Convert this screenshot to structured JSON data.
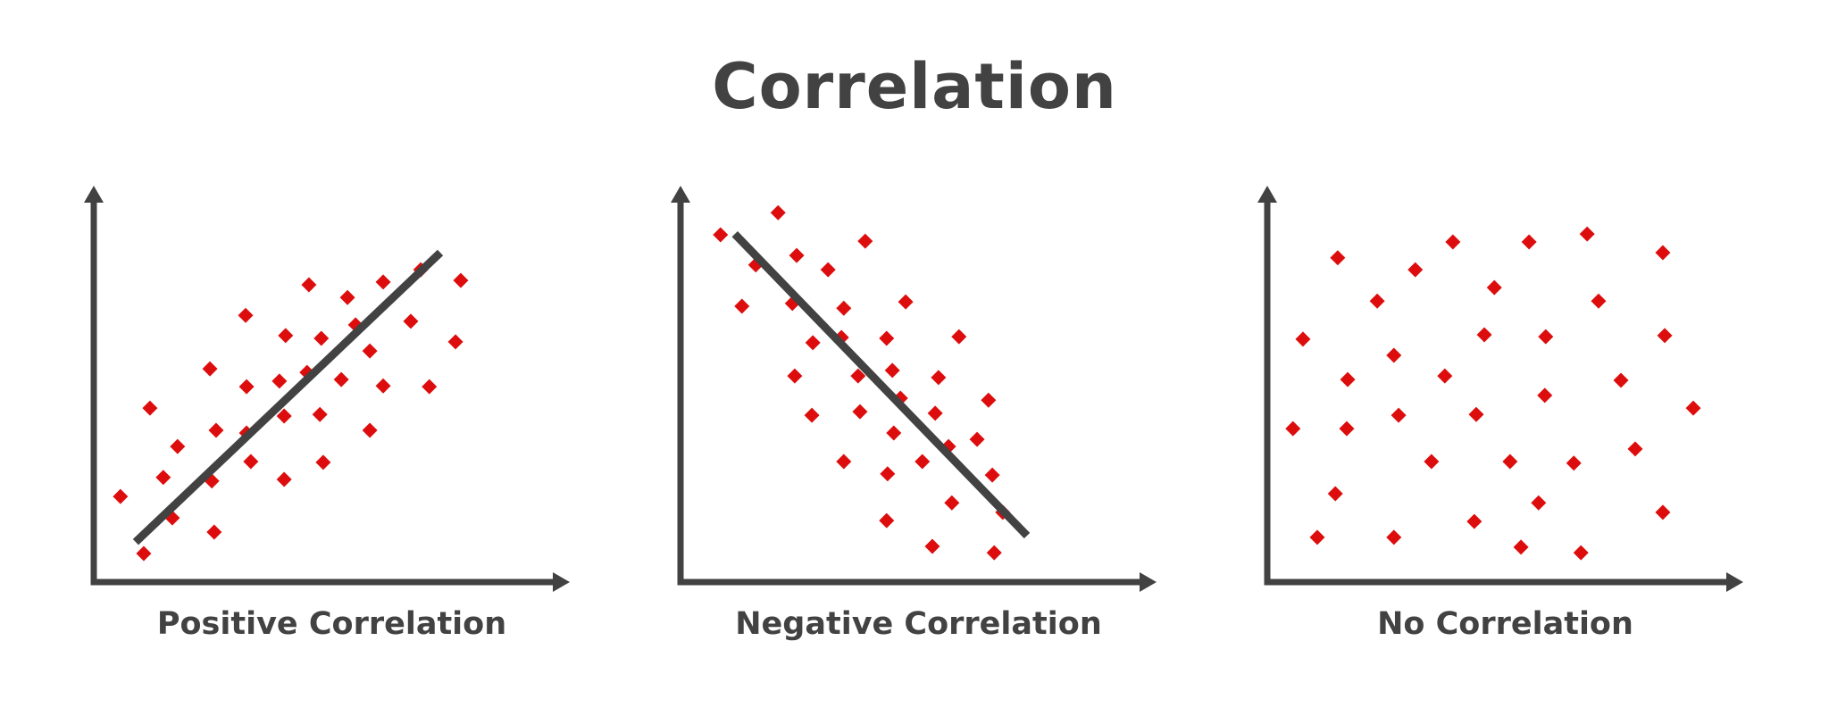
{
  "title": "Correlation",
  "colors": {
    "axis": "#424242",
    "point": "#DD0D0D",
    "line": "#424242",
    "text": "#424242"
  },
  "chart_data": [
    {
      "type": "scatter",
      "title": "Positive Correlation",
      "xlabel": "",
      "ylabel": "",
      "xlim": [
        0,
        100
      ],
      "ylim": [
        0,
        100
      ],
      "grid": false,
      "axis_ticks": false,
      "trend_line": {
        "from": [
          8.8,
          10.1
        ],
        "to": [
          72.8,
          83.1
        ],
        "direction": "positive"
      },
      "points": [
        [
          45.2,
          75.0
        ],
        [
          53.3,
          71.8
        ],
        [
          60.8,
          75.7
        ],
        [
          68.7,
          78.8
        ],
        [
          77.1,
          76.1
        ],
        [
          31.9,
          67.3
        ],
        [
          40.3,
          62.2
        ],
        [
          47.8,
          61.5
        ],
        [
          55.0,
          64.9
        ],
        [
          66.6,
          65.8
        ],
        [
          76.0,
          60.6
        ],
        [
          58.0,
          58.3
        ],
        [
          24.4,
          53.8
        ],
        [
          32.1,
          49.3
        ],
        [
          39.0,
          50.7
        ],
        [
          44.8,
          52.9
        ],
        [
          52.0,
          51.1
        ],
        [
          60.8,
          49.5
        ],
        [
          70.5,
          49.3
        ],
        [
          11.8,
          43.9
        ],
        [
          25.7,
          38.3
        ],
        [
          32.1,
          37.6
        ],
        [
          40.0,
          41.9
        ],
        [
          47.5,
          42.3
        ],
        [
          58.0,
          38.3
        ],
        [
          17.6,
          34.2
        ],
        [
          33.0,
          30.4
        ],
        [
          48.2,
          30.2
        ],
        [
          14.6,
          26.4
        ],
        [
          24.8,
          25.5
        ],
        [
          40.0,
          25.9
        ],
        [
          5.6,
          21.6
        ],
        [
          16.5,
          16.2
        ],
        [
          25.3,
          12.6
        ],
        [
          10.5,
          7.2
        ]
      ]
    },
    {
      "type": "scatter",
      "title": "Negative Correlation",
      "xlabel": "",
      "ylabel": "",
      "xlim": [
        0,
        100
      ],
      "ylim": [
        0,
        100
      ],
      "grid": false,
      "axis_ticks": false,
      "trend_line": {
        "from": [
          11.4,
          87.8
        ],
        "to": [
          72.8,
          11.7
        ],
        "direction": "negative"
      },
      "points": [
        [
          20.5,
          93.2
        ],
        [
          8.4,
          87.6
        ],
        [
          38.8,
          86.0
        ],
        [
          24.4,
          82.4
        ],
        [
          15.8,
          80.0
        ],
        [
          31.0,
          78.8
        ],
        [
          12.9,
          69.6
        ],
        [
          23.5,
          70.3
        ],
        [
          34.3,
          69.1
        ],
        [
          47.3,
          70.7
        ],
        [
          27.8,
          60.4
        ],
        [
          33.8,
          61.7
        ],
        [
          43.3,
          61.5
        ],
        [
          58.5,
          61.9
        ],
        [
          24.0,
          52.0
        ],
        [
          37.3,
          52.0
        ],
        [
          44.5,
          53.4
        ],
        [
          54.2,
          51.6
        ],
        [
          46.2,
          46.4
        ],
        [
          64.7,
          45.9
        ],
        [
          27.6,
          42.1
        ],
        [
          37.7,
          43.0
        ],
        [
          53.5,
          42.6
        ],
        [
          44.8,
          37.6
        ],
        [
          62.3,
          36.0
        ],
        [
          56.3,
          34.2
        ],
        [
          34.3,
          30.4
        ],
        [
          50.8,
          30.4
        ],
        [
          43.5,
          27.3
        ],
        [
          65.5,
          27.0
        ],
        [
          57.0,
          20.0
        ],
        [
          67.7,
          17.6
        ],
        [
          43.3,
          15.5
        ],
        [
          52.9,
          9.0
        ],
        [
          65.9,
          7.4
        ]
      ]
    },
    {
      "type": "scatter",
      "title": "No Correlation",
      "xlabel": "",
      "ylabel": "",
      "xlim": [
        0,
        100
      ],
      "ylim": [
        0,
        100
      ],
      "grid": false,
      "axis_ticks": false,
      "trend_line": null,
      "points": [
        [
          39.0,
          85.8
        ],
        [
          55.0,
          85.8
        ],
        [
          67.2,
          87.8
        ],
        [
          14.8,
          81.8
        ],
        [
          83.1,
          83.1
        ],
        [
          31.1,
          78.8
        ],
        [
          47.7,
          74.3
        ],
        [
          23.1,
          70.9
        ],
        [
          69.6,
          70.9
        ],
        [
          7.5,
          61.3
        ],
        [
          45.6,
          62.4
        ],
        [
          58.5,
          61.9
        ],
        [
          83.5,
          62.2
        ],
        [
          26.6,
          57.2
        ],
        [
          16.9,
          51.1
        ],
        [
          37.3,
          52.0
        ],
        [
          74.3,
          50.9
        ],
        [
          58.3,
          47.1
        ],
        [
          27.6,
          42.1
        ],
        [
          43.9,
          42.3
        ],
        [
          89.5,
          43.9
        ],
        [
          5.4,
          38.7
        ],
        [
          16.7,
          38.7
        ],
        [
          34.5,
          30.4
        ],
        [
          51.0,
          30.4
        ],
        [
          64.4,
          30.0
        ],
        [
          77.3,
          33.6
        ],
        [
          14.3,
          22.3
        ],
        [
          57.0,
          20.0
        ],
        [
          83.1,
          17.6
        ],
        [
          43.5,
          15.3
        ],
        [
          10.5,
          11.3
        ],
        [
          26.6,
          11.3
        ],
        [
          53.3,
          8.8
        ],
        [
          65.9,
          7.4
        ]
      ]
    }
  ],
  "panels": [
    {
      "caption": "Positive Correlation"
    },
    {
      "caption": "Negative Correlation"
    },
    {
      "caption": "No Correlation"
    }
  ]
}
